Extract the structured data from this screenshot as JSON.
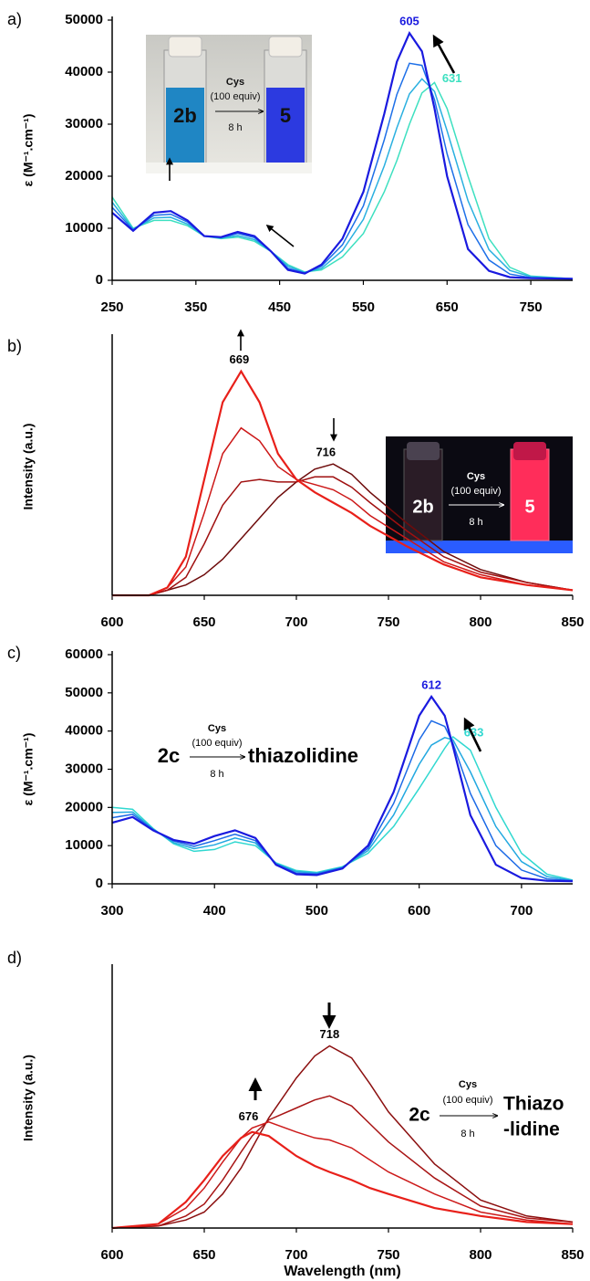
{
  "chart_data": [
    {
      "type": "line",
      "label": "a)",
      "ylabel": "ε (M⁻¹.cm⁻¹)",
      "xlim": [
        250,
        800
      ],
      "ylim": [
        0,
        50000
      ],
      "xticks": [
        250,
        350,
        450,
        550,
        650,
        750
      ],
      "yticks": [
        0,
        10000,
        20000,
        30000,
        40000,
        50000
      ],
      "x": [
        250,
        275,
        300,
        320,
        340,
        360,
        380,
        400,
        420,
        440,
        460,
        480,
        500,
        525,
        550,
        575,
        590,
        605,
        620,
        635,
        650,
        675,
        700,
        725,
        750,
        800
      ],
      "series": [
        {
          "color": "#3de0c0",
          "values": [
            16000,
            10000,
            11500,
            11500,
            10500,
            8500,
            8000,
            8300,
            7500,
            5500,
            3000,
            1600,
            2000,
            4500,
            9000,
            17000,
            23000,
            30000,
            36000,
            38000,
            33000,
            20000,
            8000,
            2500,
            800,
            300
          ]
        },
        {
          "color": "#2ab0e0",
          "values": [
            15000,
            9800,
            12000,
            12100,
            10800,
            8500,
            8100,
            8600,
            7800,
            5500,
            2700,
            1500,
            2300,
            5700,
            11700,
            22000,
            29300,
            35800,
            38700,
            36300,
            28700,
            15300,
            5900,
            1900,
            700,
            300
          ]
        },
        {
          "color": "#1e70e8",
          "values": [
            14000,
            9700,
            12500,
            12700,
            11200,
            8500,
            8200,
            9000,
            8200,
            5500,
            2300,
            1400,
            2700,
            6800,
            14300,
            27000,
            35700,
            41700,
            41300,
            34700,
            24300,
            10700,
            3900,
            1200,
            500,
            300
          ]
        },
        {
          "color": "#1a1adf",
          "values": [
            13000,
            9500,
            13000,
            13300,
            11500,
            8500,
            8300,
            9300,
            8500,
            5500,
            2000,
            1300,
            3000,
            8000,
            17000,
            32000,
            42000,
            47500,
            44000,
            33000,
            20000,
            6000,
            1800,
            600,
            400,
            300
          ]
        }
      ],
      "annotations": [
        {
          "text": "605",
          "x": 605,
          "color": "#1a1adf"
        },
        {
          "text": "631",
          "x": 631,
          "color": "#3de0c0"
        }
      ],
      "inset": {
        "reagent": "Cys",
        "amount": "(100 equiv)",
        "time": "8 h",
        "start": "2b",
        "product": [
          "5"
        ]
      }
    },
    {
      "type": "line",
      "label": "b)",
      "ylabel": "Intensity (a.u.)",
      "xlim": [
        600,
        850
      ],
      "ylim": [
        0,
        1
      ],
      "xticks": [
        600,
        650,
        700,
        750,
        800,
        850
      ],
      "x": [
        600,
        620,
        630,
        640,
        650,
        660,
        670,
        680,
        690,
        700,
        710,
        720,
        730,
        740,
        760,
        780,
        800,
        825,
        850
      ],
      "series": [
        {
          "color": "#6e0b0b",
          "values": [
            0,
            0,
            0.02,
            0.04,
            0.08,
            0.14,
            0.22,
            0.3,
            0.38,
            0.44,
            0.49,
            0.51,
            0.47,
            0.4,
            0.28,
            0.17,
            0.1,
            0.05,
            0.02
          ]
        },
        {
          "color": "#a01010",
          "values": [
            0,
            0,
            0.02,
            0.07,
            0.2,
            0.35,
            0.44,
            0.45,
            0.44,
            0.44,
            0.46,
            0.46,
            0.42,
            0.36,
            0.25,
            0.15,
            0.09,
            0.05,
            0.02
          ]
        },
        {
          "color": "#cc1818",
          "values": [
            0,
            0,
            0.03,
            0.11,
            0.32,
            0.55,
            0.65,
            0.6,
            0.5,
            0.45,
            0.43,
            0.41,
            0.37,
            0.31,
            0.22,
            0.13,
            0.08,
            0.04,
            0.02
          ]
        },
        {
          "color": "#e8201a",
          "values": [
            0,
            0,
            0.03,
            0.15,
            0.45,
            0.75,
            0.87,
            0.75,
            0.55,
            0.45,
            0.4,
            0.36,
            0.32,
            0.27,
            0.19,
            0.12,
            0.07,
            0.04,
            0.02
          ]
        }
      ],
      "annotations": [
        {
          "text": "669",
          "x": 669,
          "color": "#000000"
        },
        {
          "text": "716",
          "x": 716,
          "color": "#000000"
        }
      ],
      "inset": {
        "reagent": "Cys",
        "amount": "(100 equiv)",
        "time": "8 h",
        "start": "2b",
        "product": [
          "5"
        ]
      }
    },
    {
      "type": "line",
      "label": "c)",
      "ylabel": "ε (M⁻¹.cm⁻¹)",
      "xlim": [
        300,
        750
      ],
      "ylim": [
        0,
        60000
      ],
      "xticks": [
        300,
        400,
        500,
        600,
        700
      ],
      "yticks": [
        0,
        10000,
        20000,
        30000,
        40000,
        50000,
        60000
      ],
      "x": [
        300,
        320,
        340,
        360,
        380,
        400,
        420,
        440,
        460,
        480,
        500,
        525,
        550,
        575,
        600,
        612,
        625,
        633,
        650,
        675,
        700,
        725,
        750
      ],
      "series": [
        {
          "color": "#30d8d0",
          "values": [
            20000,
            19500,
            14500,
            10500,
            8500,
            9000,
            11000,
            10000,
            5500,
            3500,
            3000,
            4500,
            8000,
            15000,
            25000,
            30000,
            35500,
            38500,
            35000,
            20000,
            8000,
            2500,
            1000
          ]
        },
        {
          "color": "#22a8e0",
          "values": [
            18700,
            18800,
            14300,
            10800,
            9200,
            10200,
            12000,
            10700,
            5300,
            3200,
            2800,
            4300,
            8700,
            18000,
            31300,
            36300,
            38300,
            37700,
            29300,
            15000,
            5800,
            1900,
            900
          ]
        },
        {
          "color": "#1c6ae6",
          "values": [
            17300,
            18200,
            14200,
            11200,
            9800,
            11300,
            13000,
            11300,
            5200,
            2800,
            2600,
            4200,
            9300,
            21000,
            37700,
            42700,
            41200,
            36800,
            23700,
            10000,
            3600,
            1300,
            800
          ]
        },
        {
          "color": "#1a1adf",
          "values": [
            16000,
            17500,
            14000,
            11500,
            10500,
            12500,
            14000,
            12000,
            5000,
            2500,
            2300,
            4000,
            10000,
            24000,
            44000,
            49000,
            44000,
            36000,
            18000,
            5000,
            1500,
            800,
            700
          ]
        }
      ],
      "annotations": [
        {
          "text": "612",
          "x": 612,
          "color": "#1a1adf"
        },
        {
          "text": "633",
          "x": 633,
          "color": "#30d8d0"
        }
      ],
      "inset": {
        "reagent": "Cys",
        "amount": "(100 equiv)",
        "time": "8 h",
        "start": "2c",
        "product": [
          "thiazolidine"
        ]
      }
    },
    {
      "type": "line",
      "label": "d)",
      "ylabel": "Intensity (a.u.)",
      "xlabel": "Wavelength (nm)",
      "xlim": [
        600,
        850
      ],
      "ylim": [
        0,
        1.3
      ],
      "xticks": [
        600,
        650,
        700,
        750,
        800,
        850
      ],
      "x": [
        600,
        625,
        640,
        650,
        660,
        670,
        676,
        685,
        700,
        710,
        718,
        730,
        740,
        750,
        775,
        800,
        825,
        850
      ],
      "series": [
        {
          "color": "#8b0f0f",
          "values": [
            0,
            0.01,
            0.04,
            0.08,
            0.17,
            0.3,
            0.4,
            0.55,
            0.75,
            0.86,
            0.91,
            0.85,
            0.72,
            0.58,
            0.32,
            0.14,
            0.06,
            0.03
          ]
        },
        {
          "color": "#a81414",
          "values": [
            0,
            0.01,
            0.06,
            0.12,
            0.24,
            0.38,
            0.46,
            0.54,
            0.6,
            0.64,
            0.66,
            0.61,
            0.52,
            0.43,
            0.25,
            0.11,
            0.05,
            0.03
          ]
        },
        {
          "color": "#cc1a1a",
          "values": [
            0,
            0.02,
            0.1,
            0.2,
            0.33,
            0.45,
            0.5,
            0.53,
            0.48,
            0.45,
            0.44,
            0.4,
            0.34,
            0.28,
            0.17,
            0.08,
            0.04,
            0.02
          ]
        },
        {
          "color": "#e8201a",
          "values": [
            0,
            0.02,
            0.13,
            0.24,
            0.36,
            0.45,
            0.48,
            0.46,
            0.36,
            0.31,
            0.28,
            0.24,
            0.2,
            0.17,
            0.1,
            0.06,
            0.03,
            0.02
          ]
        }
      ],
      "annotations": [
        {
          "text": "676",
          "x": 676,
          "color": "#000000"
        },
        {
          "text": "718",
          "x": 718,
          "color": "#000000"
        }
      ],
      "inset": {
        "reagent": "Cys",
        "amount": "(100 equiv)",
        "time": "8 h",
        "start": "2c",
        "product": [
          "Thiazo",
          "-lidine"
        ]
      }
    }
  ]
}
